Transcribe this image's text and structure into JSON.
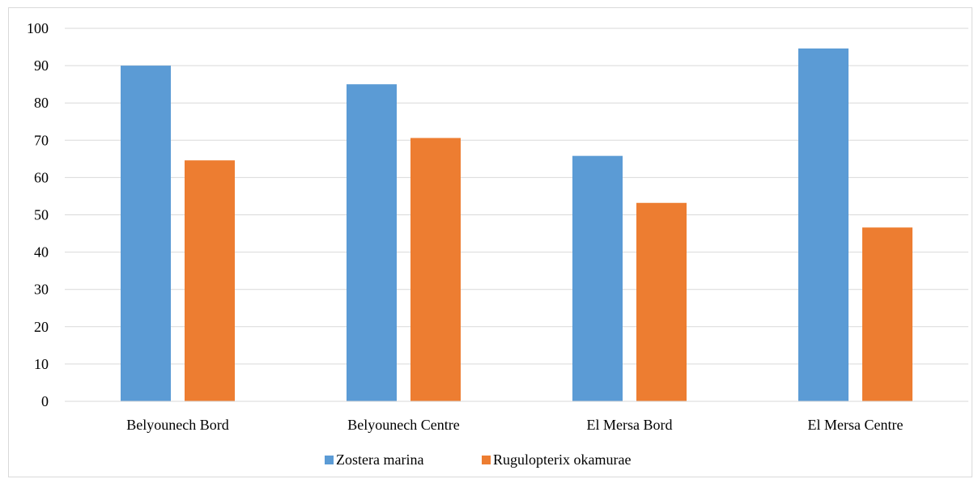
{
  "chart_data": {
    "type": "bar",
    "categories": [
      "Belyounech Bord",
      "Belyounech Centre",
      "El Mersa Bord",
      "El Mersa Centre"
    ],
    "series": [
      {
        "name": "Zostera marina",
        "values": [
          90,
          85,
          65.8,
          94.6
        ],
        "color": "#5b9bd5"
      },
      {
        "name": "Rugulopterix okamurae",
        "values": [
          64.6,
          70.6,
          53.2,
          46.6
        ],
        "color": "#ed7d31"
      }
    ],
    "title": "",
    "xlabel": "",
    "ylabel": "",
    "ylim": [
      0,
      100
    ],
    "yticks": [
      "0",
      "10",
      "20",
      "30",
      "40",
      "50",
      "60",
      "70",
      "80",
      "90",
      "100"
    ],
    "grid": true,
    "legend_position": "bottom"
  }
}
